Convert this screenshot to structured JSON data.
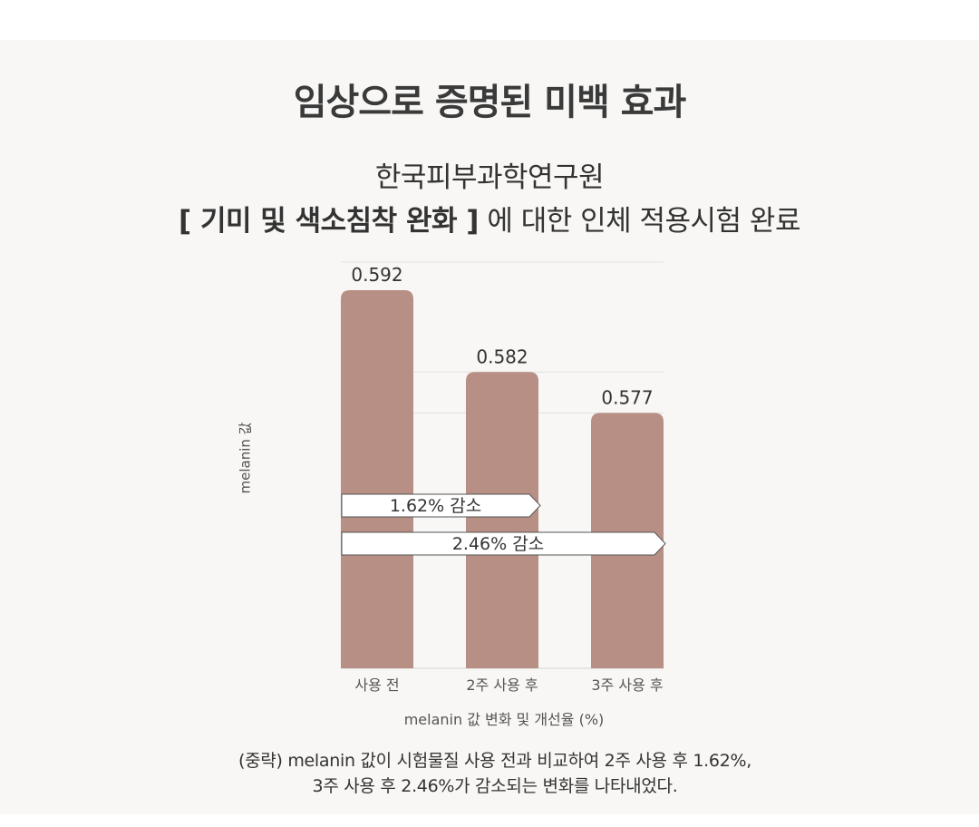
{
  "title": "임상으로 증명된 미백 효과",
  "subtitle": {
    "line1": "한국피부과학연구원",
    "line2_bold": "[ 기미 및 색소침착 완화 ]",
    "line2_rest": " 에 대한 인체 적용시험 완료"
  },
  "chart_data": {
    "type": "bar",
    "categories": [
      "사용 전",
      "2주 사용 후",
      "3주 사용 후"
    ],
    "values": [
      0.592,
      0.582,
      0.577
    ],
    "value_labels": [
      "0.592",
      "0.582",
      "0.577"
    ],
    "ylabel": "melanin 값",
    "xlabel": "melanin 값 변화 및 개선율 (%)",
    "bar_color": "#b88f84",
    "annotations": [
      {
        "text": "1.62% 감소",
        "from": "사용 전",
        "to": "2주 사용 후"
      },
      {
        "text": "2.46% 감소",
        "from": "사용 전",
        "to": "3주 사용 후"
      }
    ]
  },
  "footnote": {
    "line1": "(중략) melanin 값이 시험물질 사용 전과 비교하여 2주 사용 후 1.62%,",
    "line2": "3주 사용 후 2.46%가 감소되는 변화를 나타내었다."
  }
}
